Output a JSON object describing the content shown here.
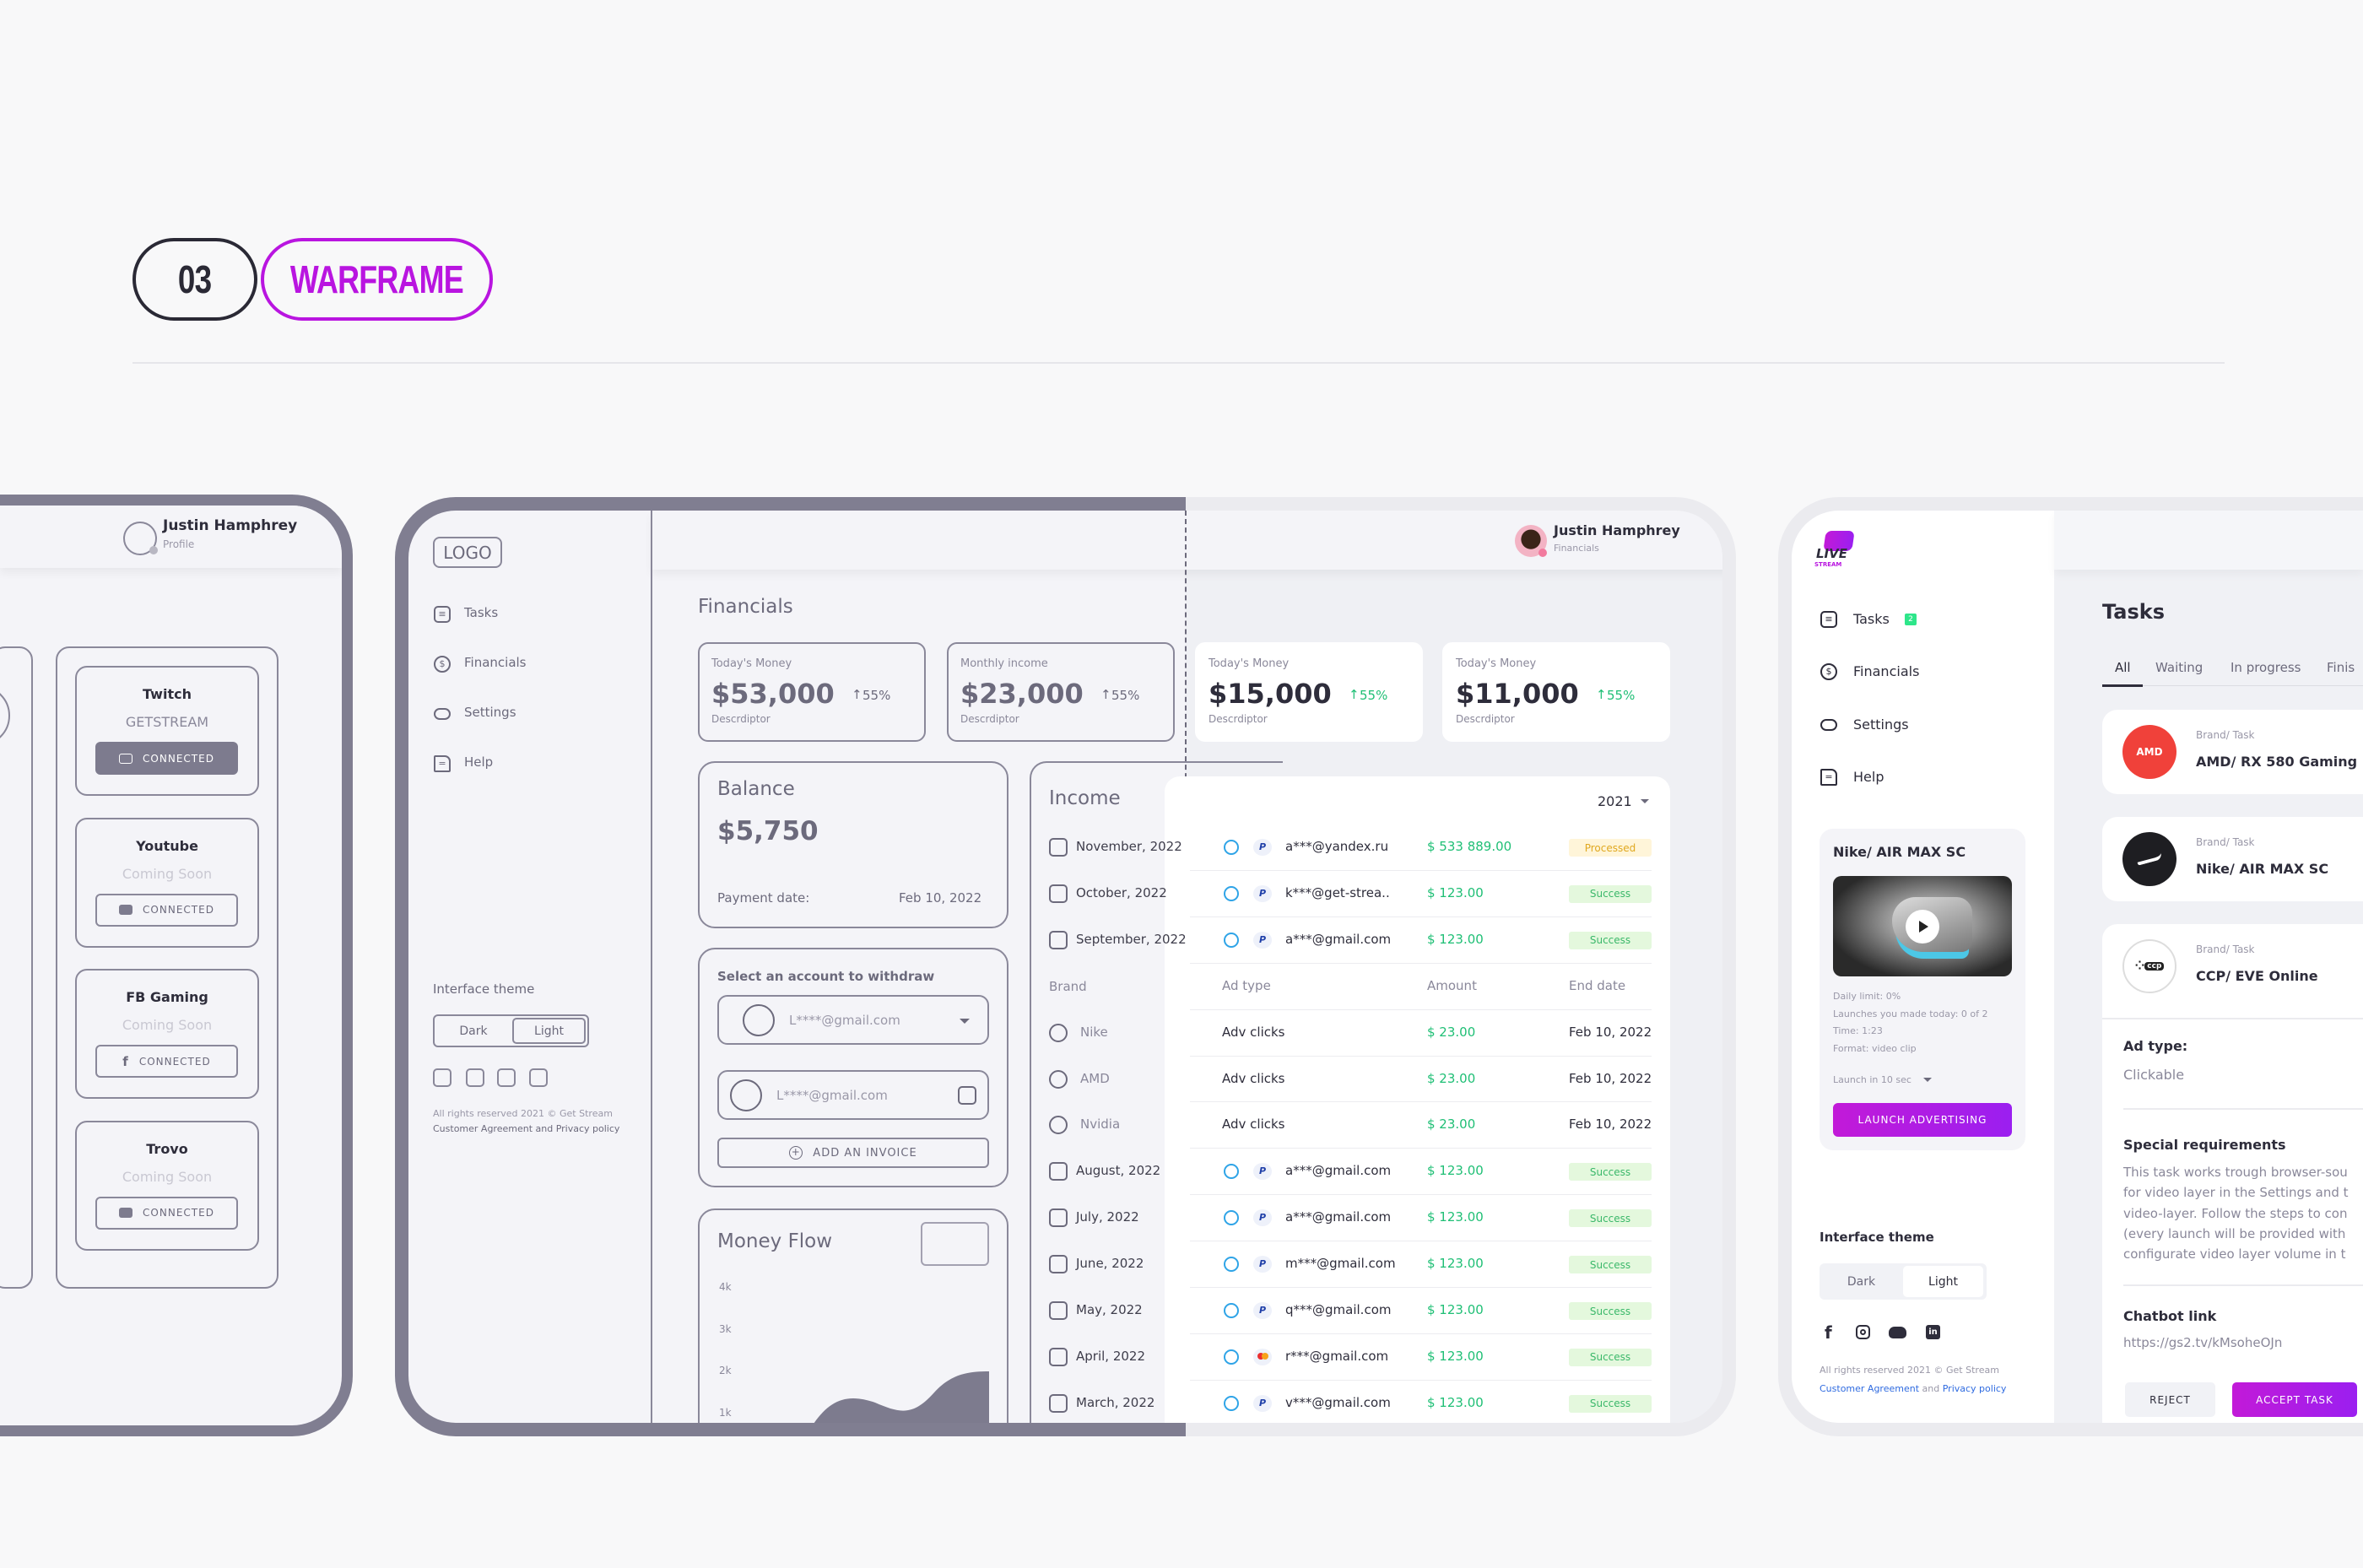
{
  "header": {
    "number": "03",
    "title": "WARFRAME",
    "accent": "#b915e0"
  },
  "colors": {
    "wire": "#807e91",
    "green": "#1fbf75",
    "purple": "#a81ee6",
    "success_bg": "#e4f8dd",
    "processed_bg": "#fff5d9"
  },
  "frame1": {
    "user": {
      "name": "Justin Hamphrey",
      "role": "Profile"
    },
    "platforms": [
      {
        "name": "Twitch",
        "status": "GETSTREAM",
        "button": "CONNECTED",
        "icon": "twitch-icon",
        "active": true
      },
      {
        "name": "Youtube",
        "status": "Coming Soon",
        "button": "CONNECTED",
        "icon": "youtube-icon",
        "active": false
      },
      {
        "name": "FB Gaming",
        "status": "Coming Soon",
        "button": "CONNECTED",
        "icon": "facebook-icon",
        "active": false
      },
      {
        "name": "Trovo",
        "status": "Coming Soon",
        "button": "CONNECTED",
        "icon": "trovo-icon",
        "active": false
      }
    ]
  },
  "frame2": {
    "logo": "LOGO",
    "nav": [
      {
        "label": "Tasks",
        "icon": "tasks-icon"
      },
      {
        "label": "Financials",
        "icon": "dollar-icon"
      },
      {
        "label": "Settings",
        "icon": "settings-icon"
      },
      {
        "label": "Help",
        "icon": "help-icon"
      }
    ],
    "theme": {
      "label": "Interface theme",
      "dark": "Dark",
      "light": "Light",
      "selected": "Light"
    },
    "footer": {
      "line1": "All rights reserved 2021 © Get Stream",
      "line2": "Customer Agreement and Privacy policy"
    },
    "user": {
      "name": "Justin Hamphrey",
      "role": "Financials"
    },
    "page_title": "Financials",
    "stats": [
      {
        "label": "Today's Money",
        "value": "$53,000",
        "change": "55%",
        "desc": "Descrdiptor"
      },
      {
        "label": "Monthly income",
        "value": "$23,000",
        "change": "55%",
        "desc": "Descrdiptor"
      },
      {
        "label": "Today's Money",
        "value": "$15,000",
        "change": "55%",
        "desc": "Descrdiptor"
      },
      {
        "label": "Today's Money",
        "value": "$11,000",
        "change": "55%",
        "desc": "Descrdiptor"
      }
    ],
    "balance": {
      "title": "Balance",
      "value": "$5,750",
      "date_label": "Payment date:",
      "date": "Feb 10, 2022"
    },
    "withdraw": {
      "title": "Select an account to withdraw",
      "account1": "L****@gmail.com",
      "account2": "L****@gmail.com",
      "add": "ADD AN INVOICE"
    },
    "money_flow": {
      "title": "Money Flow",
      "ticks": [
        "4k",
        "3k",
        "2k",
        "1k"
      ]
    },
    "income": {
      "title": "Income",
      "year": "2021",
      "rows": [
        {
          "kind": "month",
          "label": "November, 2022"
        },
        {
          "kind": "month",
          "label": "October, 2022"
        },
        {
          "kind": "month",
          "label": "September, 2022"
        },
        {
          "kind": "header",
          "label": "Brand"
        },
        {
          "kind": "brand",
          "label": "Nike"
        },
        {
          "kind": "brand",
          "label": "AMD"
        },
        {
          "kind": "brand",
          "label": "Nvidia"
        },
        {
          "kind": "month",
          "label": "August, 2022"
        },
        {
          "kind": "month",
          "label": "July, 2022"
        },
        {
          "kind": "month",
          "label": "June, 2022"
        },
        {
          "kind": "month",
          "label": "May, 2022"
        },
        {
          "kind": "month",
          "label": "April, 2022"
        },
        {
          "kind": "month",
          "label": "March, 2022"
        }
      ],
      "table": [
        {
          "kind": "tx",
          "method": "paypal",
          "email": "a***@yandex.ru",
          "amount": "$ 533 889.00",
          "status": "Processed"
        },
        {
          "kind": "tx",
          "method": "paypal",
          "email": "k***@get-strea..",
          "amount": "$ 123.00",
          "status": "Success"
        },
        {
          "kind": "tx",
          "method": "paypal",
          "email": "a***@gmail.com",
          "amount": "$ 123.00",
          "status": "Success"
        },
        {
          "kind": "head",
          "c1": "Ad type",
          "c2": "Amount",
          "c3": "End date"
        },
        {
          "kind": "ad",
          "c1": "Adv clicks",
          "c2": "$ 23.00",
          "c3": "Feb 10, 2022"
        },
        {
          "kind": "ad",
          "c1": "Adv clicks",
          "c2": "$ 23.00",
          "c3": "Feb 10, 2022"
        },
        {
          "kind": "ad",
          "c1": "Adv clicks",
          "c2": "$ 23.00",
          "c3": "Feb 10, 2022"
        },
        {
          "kind": "tx",
          "method": "paypal",
          "email": "a***@gmail.com",
          "amount": "$ 123.00",
          "status": "Success"
        },
        {
          "kind": "tx",
          "method": "paypal",
          "email": "a***@gmail.com",
          "amount": "$ 123.00",
          "status": "Success"
        },
        {
          "kind": "tx",
          "method": "paypal",
          "email": "m***@gmail.com",
          "amount": "$ 123.00",
          "status": "Success"
        },
        {
          "kind": "tx",
          "method": "paypal",
          "email": "q***@gmail.com",
          "amount": "$ 123.00",
          "status": "Success"
        },
        {
          "kind": "tx",
          "method": "mastercard",
          "email": "r***@gmail.com",
          "amount": "$ 123.00",
          "status": "Success"
        },
        {
          "kind": "tx",
          "method": "paypal",
          "email": "v***@gmail.com",
          "amount": "$ 123.00",
          "status": "Success"
        }
      ]
    }
  },
  "frame3": {
    "logo": {
      "line1": "LIVE",
      "line2": "STREAM"
    },
    "nav": [
      {
        "label": "Tasks",
        "icon": "tasks-icon",
        "badge": "2"
      },
      {
        "label": "Financials",
        "icon": "dollar-icon"
      },
      {
        "label": "Settings",
        "icon": "settings-icon"
      },
      {
        "label": "Help",
        "icon": "help-icon"
      }
    ],
    "promo": {
      "title": "Nike/ AIR MAX SC",
      "details": [
        "Daily limit: 0%",
        "Launches you made today: 0 of 2",
        "Time: 1:23",
        "Format: video clip"
      ],
      "launch_select": "Launch in 10 sec",
      "button": "LAUNCH ADVERTISING"
    },
    "theme": {
      "label": "Interface theme",
      "dark": "Dark",
      "light": "Light",
      "selected": "Light"
    },
    "social": [
      "facebook-icon",
      "instagram-icon",
      "discord-icon",
      "linkedin-icon"
    ],
    "footer": {
      "line1": "All rights reserved 2021 © Get Stream",
      "agreement": "Customer Agreement",
      "and": "and",
      "privacy": "Privacy policy"
    },
    "page_title": "Tasks",
    "tabs": [
      {
        "label": "All",
        "active": true
      },
      {
        "label": "Waiting"
      },
      {
        "label": "In progress"
      },
      {
        "label": "Finis"
      }
    ],
    "tasks": [
      {
        "label": "Brand/ Task",
        "title": "AMD/ RX 580 Gaming",
        "logo": "AMD",
        "color": "#f0413a"
      },
      {
        "label": "Brand/ Task",
        "title": "Nike/ AIR MAX SC",
        "logo": "nike",
        "color": "#1e1e22"
      },
      {
        "label": "Brand/ Task",
        "title": "CCP/ EVE Online",
        "logo": "CCP",
        "color": "#ffffff"
      }
    ],
    "detail": {
      "ad_type_label": "Ad type:",
      "ad_type": "Clickable",
      "req_label": "Special requirements",
      "req_lines": [
        "This task works trough browser-sou",
        "for video layer in the Settings and t",
        "video-layer. Follow the steps to con",
        "(every launch will be provided with",
        "configurate video layer volume in t"
      ],
      "chatbot_label": "Chatbot link",
      "chatbot_url": "https://gs2.tv/kMsoheOJn",
      "reject": "REJECT",
      "accept": "ACCEPT TASK"
    }
  }
}
